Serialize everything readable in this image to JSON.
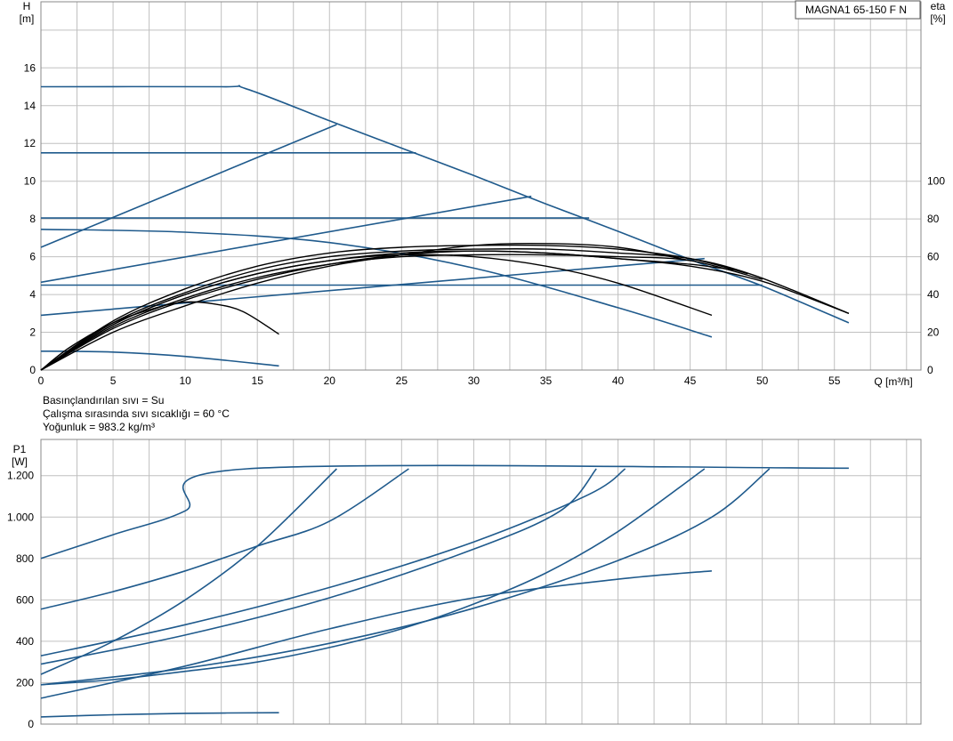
{
  "chart_data": [
    {
      "type": "line",
      "title": "MAGNA1 65-150 F N",
      "ylabel": "H",
      "ylabel_unit": "[m]",
      "y2label": "eta",
      "y2label_unit": "[%]",
      "xlabel": "Q [m³/h]",
      "xlim": [
        0,
        61
      ],
      "ylim": [
        0,
        19.5
      ],
      "y2lim": [
        0,
        195
      ],
      "grid": true,
      "x_ticks": [
        0,
        5,
        10,
        15,
        20,
        25,
        30,
        35,
        40,
        45,
        50,
        55
      ],
      "y_ticks": [
        0,
        2,
        4,
        6,
        8,
        10,
        12,
        14,
        16
      ],
      "y2_ticks": [
        0,
        20,
        40,
        60,
        80,
        100
      ],
      "colors": {
        "pump_curves": "#1f5a8c",
        "efficiency_curves": "#000000",
        "grid": "#c0c0c0"
      },
      "head_series": [
        {
          "points": [
            [
              0,
              15.0
            ],
            [
              12.5,
              15.0
            ],
            [
              14.2,
              14.9
            ],
            [
              20,
              13.2
            ],
            [
              25,
              11.75
            ],
            [
              30,
              10.3
            ],
            [
              35,
              8.8
            ],
            [
              40,
              7.35
            ],
            [
              45,
              5.85
            ],
            [
              50,
              4.45
            ],
            [
              56,
              2.5
            ]
          ]
        },
        {
          "points": [
            [
              0,
              11.5
            ],
            [
              26,
              11.5
            ]
          ]
        },
        {
          "points": [
            [
              0,
              8.05
            ],
            [
              38,
              8.05
            ]
          ]
        },
        {
          "points": [
            [
              0,
              4.5
            ],
            [
              50,
              4.5
            ]
          ]
        },
        {
          "points": [
            [
              0,
              6.5
            ],
            [
              20.5,
              13.0
            ]
          ]
        },
        {
          "points": [
            [
              0,
              4.65
            ],
            [
              34,
              9.2
            ]
          ]
        },
        {
          "points": [
            [
              0,
              2.9
            ],
            [
              46,
              5.9
            ]
          ]
        },
        {
          "points": [
            [
              0,
              7.45
            ],
            [
              10,
              7.3
            ],
            [
              20,
              6.75
            ],
            [
              30,
              5.4
            ],
            [
              40,
              3.3
            ],
            [
              46.5,
              1.75
            ]
          ]
        },
        {
          "points": [
            [
              0,
              1.0
            ],
            [
              5,
              0.95
            ],
            [
              10,
              0.72
            ],
            [
              16.5,
              0.22
            ]
          ]
        }
      ],
      "efficiency_series": [
        {
          "points": [
            [
              0,
              0
            ],
            [
              2,
              12
            ],
            [
              5,
              25
            ],
            [
              8,
              33
            ],
            [
              10,
              36
            ],
            [
              12,
              35
            ],
            [
              14,
              31
            ],
            [
              16.5,
              19
            ]
          ]
        },
        {
          "points": [
            [
              0,
              0
            ],
            [
              5,
              24
            ],
            [
              10,
              40
            ],
            [
              15,
              51
            ],
            [
              20,
              58
            ],
            [
              25,
              61
            ],
            [
              30,
              60
            ],
            [
              35,
              55
            ],
            [
              40,
              46
            ],
            [
              46.5,
              29
            ]
          ]
        },
        {
          "points": [
            [
              0,
              0
            ],
            [
              5,
              22
            ],
            [
              10,
              37
            ],
            [
              15,
              48
            ],
            [
              20,
              56
            ],
            [
              25,
              61
            ],
            [
              30,
              63
            ],
            [
              35,
              62
            ],
            [
              40,
              59
            ],
            [
              45,
              55
            ],
            [
              50,
              47
            ],
            [
              56,
              30
            ]
          ]
        },
        {
          "points": [
            [
              0,
              0
            ],
            [
              5,
              25
            ],
            [
              10,
              41
            ],
            [
              15,
              53
            ],
            [
              20,
              60
            ],
            [
              25,
              63
            ],
            [
              30,
              64
            ],
            [
              35,
              64
            ],
            [
              40,
              62
            ],
            [
              45,
              59
            ],
            [
              49.5,
              50
            ],
            [
              56,
              30
            ]
          ]
        },
        {
          "points": [
            [
              0,
              0
            ],
            [
              5,
              26
            ],
            [
              10,
              43
            ],
            [
              15,
              55
            ],
            [
              20,
              62
            ],
            [
              25,
              65
            ],
            [
              30,
              66
            ],
            [
              35,
              66
            ],
            [
              40,
              64
            ],
            [
              45,
              59
            ],
            [
              49,
              51
            ]
          ]
        },
        {
          "points": [
            [
              0,
              0
            ],
            [
              5,
              24
            ],
            [
              10,
              40
            ],
            [
              15,
              51
            ],
            [
              20,
              58
            ],
            [
              25,
              62
            ],
            [
              30,
              63
            ],
            [
              35,
              62
            ],
            [
              40,
              59
            ],
            [
              45,
              56
            ],
            [
              48,
              53
            ]
          ]
        },
        {
          "points": [
            [
              0,
              0
            ],
            [
              5,
              20
            ],
            [
              10,
              34
            ],
            [
              15,
              46
            ],
            [
              20,
              55
            ],
            [
              25,
              61
            ],
            [
              30,
              66
            ],
            [
              35,
              67
            ],
            [
              40,
              65
            ],
            [
              45,
              58
            ]
          ]
        },
        {
          "points": [
            [
              0,
              0
            ],
            [
              5,
              23
            ],
            [
              10,
              38
            ],
            [
              15,
              49
            ],
            [
              20,
              56
            ],
            [
              25,
              60
            ],
            [
              30,
              61
            ],
            [
              35,
              61
            ],
            [
              40,
              60
            ],
            [
              45,
              58
            ],
            [
              50,
              48
            ]
          ]
        }
      ]
    },
    {
      "type": "line",
      "ylabel": "P1",
      "ylabel_unit": "[W]",
      "xlim": [
        0,
        61
      ],
      "ylim": [
        0,
        1375
      ],
      "grid": true,
      "y_tick_labels": [
        "0",
        "200",
        "400",
        "600",
        "800",
        "1.000",
        "1.200"
      ],
      "y_tick_values": [
        0,
        200,
        400,
        600,
        800,
        1000,
        1200
      ],
      "colors": {
        "curves": "#1f5a8c"
      },
      "series": [
        {
          "points": [
            [
              0,
              800
            ],
            [
              5,
              915
            ],
            [
              10,
              1030
            ],
            [
              14.3,
              1233
            ],
            [
              56,
              1236
            ]
          ]
        },
        {
          "points": [
            [
              0,
              555
            ],
            [
              5,
              640
            ],
            [
              10,
              740
            ],
            [
              15,
              860
            ],
            [
              20,
              980
            ],
            [
              25.5,
              1233
            ]
          ]
        },
        {
          "points": [
            [
              0,
              240
            ],
            [
              5,
              400
            ],
            [
              10,
              600
            ],
            [
              15,
              860
            ],
            [
              20.5,
              1233
            ]
          ]
        },
        {
          "points": [
            [
              0,
              330
            ],
            [
              10,
              480
            ],
            [
              20,
              660
            ],
            [
              30,
              880
            ],
            [
              38,
              1110
            ],
            [
              40.5,
              1233
            ]
          ]
        },
        {
          "points": [
            [
              0,
              290
            ],
            [
              10,
              430
            ],
            [
              20,
              610
            ],
            [
              30,
              845
            ],
            [
              36,
              1030
            ],
            [
              38.5,
              1233
            ]
          ]
        },
        {
          "points": [
            [
              0,
              190
            ],
            [
              10,
              270
            ],
            [
              20,
              390
            ],
            [
              30,
              560
            ],
            [
              40,
              790
            ],
            [
              46.5,
              1000
            ],
            [
              50.5,
              1233
            ]
          ]
        },
        {
          "points": [
            [
              0,
              190
            ],
            [
              5,
              215
            ],
            [
              10,
              255
            ],
            [
              15,
              300
            ],
            [
              20,
              370
            ],
            [
              25,
              460
            ],
            [
              30,
              580
            ],
            [
              35,
              730
            ],
            [
              40,
              930
            ],
            [
              46,
              1233
            ]
          ]
        },
        {
          "points": [
            [
              0,
              125
            ],
            [
              10,
              280
            ],
            [
              20,
              460
            ],
            [
              30,
              610
            ],
            [
              40,
              700
            ],
            [
              46.5,
              740
            ]
          ]
        },
        {
          "points": [
            [
              0,
              35
            ],
            [
              5,
              45
            ],
            [
              10,
              52
            ],
            [
              16.5,
              55
            ]
          ]
        }
      ]
    }
  ],
  "fluid_info": {
    "fluid": "Basınçlandırılan sıvı = Su",
    "temperature": "Çalışma sırasında sıvı sıcaklığı = 60 °C",
    "density": "Yoğunluk = 983.2 kg/m³"
  }
}
